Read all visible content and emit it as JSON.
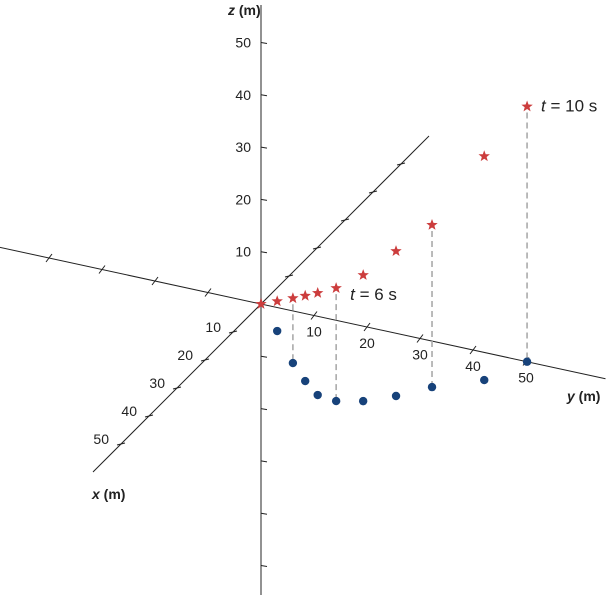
{
  "chart_data": {
    "type": "scatter",
    "dimensions": 3,
    "axes": {
      "x": {
        "label_var": "x",
        "label_unit": " (m)",
        "ticks": [
          "10",
          "20",
          "30",
          "40",
          "50"
        ]
      },
      "y": {
        "label_var": "y",
        "label_unit": " (m)",
        "ticks": [
          "10",
          "20",
          "30",
          "40",
          "50"
        ]
      },
      "z": {
        "label_var": "z",
        "label_unit": " (m)",
        "ticks": [
          "10",
          "20",
          "30",
          "40",
          "50"
        ]
      }
    },
    "grid": false,
    "colors": {
      "trajectory": "#cc3d3d",
      "projection": "#17427a",
      "axis_z": "#777777",
      "axis": "#222222",
      "dashed": "#aaaaaa"
    },
    "series": [
      {
        "marker": "star",
        "color_key": "trajectory",
        "points": [
          {
            "x": 0,
            "y": 0,
            "z": 0
          },
          {
            "x": 6.9,
            "y": 6.7,
            "z": 5.7
          },
          {
            "x": 15.3,
            "y": 14.1,
            "z": 12.4
          },
          {
            "x": 19.8,
            "y": 18.8,
            "z": 16.3
          },
          {
            "x": 23.1,
            "y": 22.9,
            "z": 19.5
          },
          {
            "x": 23.7,
            "y": 26.7,
            "z": 21.6
          },
          {
            "x": 22.0,
            "y": 30.9,
            "z": 24.1
          },
          {
            "x": 18.4,
            "y": 35.2,
            "z": 27.7
          },
          {
            "x": 13.5,
            "y": 39.4,
            "z": 31.0
          },
          {
            "x": 8.1,
            "y": 46.4,
            "z": 42.8
          },
          {
            "x": 0,
            "y": 50.2,
            "z": 48.8
          }
        ]
      },
      {
        "marker": "circle",
        "color_key": "projection",
        "points": [
          {
            "x": 6.9,
            "y": 6.7,
            "z": 0
          },
          {
            "x": 15.3,
            "y": 14.1,
            "z": 0
          },
          {
            "x": 19.8,
            "y": 18.8,
            "z": 0
          },
          {
            "x": 23.1,
            "y": 22.9,
            "z": 0
          },
          {
            "x": 23.7,
            "y": 26.7,
            "z": 0
          },
          {
            "x": 22.0,
            "y": 30.9,
            "z": 0
          },
          {
            "x": 18.4,
            "y": 35.2,
            "z": 0
          },
          {
            "x": 13.5,
            "y": 39.4,
            "z": 0
          },
          {
            "x": 8.1,
            "y": 46.4,
            "z": 0
          },
          {
            "x": 0,
            "y": 50.2,
            "z": 0
          }
        ]
      }
    ],
    "dashed_drop_lines_at_points": [
      2,
      5,
      8,
      10
    ],
    "annotations": [
      {
        "point": 5,
        "t_var": "t",
        "text": " = 6 s"
      },
      {
        "point": 10,
        "t_var": "t",
        "text": " = 10 s"
      }
    ]
  }
}
